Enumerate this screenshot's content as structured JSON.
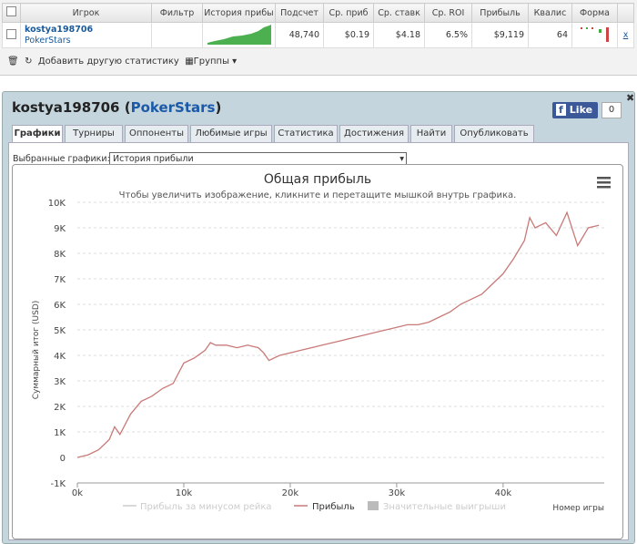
{
  "table": {
    "headers": [
      "Игрок",
      "Фильтр",
      "История прибы",
      "Подсчет",
      "Ср. приб",
      "Ср. ставк",
      "Ср. ROI",
      "Прибыль",
      "Квалис",
      "Форма"
    ],
    "row": {
      "player": "kostya198706",
      "site": "PokerStars",
      "count": "48,740",
      "avg_profit": "$0.19",
      "avg_stake": "$4.18",
      "roi": "6.5%",
      "profit": "$9,119",
      "quality": "64",
      "remove": "x"
    }
  },
  "toolbar": {
    "add": "Добавить другую статистику",
    "groups": "Группы"
  },
  "panel": {
    "player": "kostya198706",
    "paren_open": "(",
    "site": "PokerStars",
    "paren_close": ")",
    "like": "Like",
    "like_count": "0",
    "tabs": [
      "Графики",
      "Турниры",
      "Оппоненты",
      "Любимые игры",
      "Статистика",
      "Достижения",
      "Найти",
      "Опубликовать"
    ],
    "select_label": "Выбранные графики:",
    "selected": "История прибыли"
  },
  "chart_data": {
    "type": "line",
    "title": "Общая прибыль",
    "subtitle": "Чтобы увеличить изображение, кликните и перетащите мышкой внутрь графика.",
    "x_label": "Номер игры",
    "y_label": "Суммарный итог (USD)",
    "x": [
      0,
      1000,
      2000,
      3000,
      3500,
      4000,
      5000,
      6000,
      7000,
      8000,
      9000,
      9500,
      10000,
      11000,
      12000,
      12500,
      13000,
      14000,
      15000,
      16000,
      17000,
      17500,
      18000,
      19000,
      20000,
      21000,
      22000,
      23000,
      24000,
      25000,
      26000,
      27000,
      28000,
      29000,
      30000,
      31000,
      32000,
      33000,
      34000,
      35000,
      36000,
      37000,
      38000,
      39000,
      40000,
      41000,
      42000,
      42500,
      43000,
      44000,
      45000,
      46000,
      47000,
      48000,
      49000
    ],
    "series": [
      {
        "name": "Прибыль",
        "color": "#c87a78",
        "values": [
          0,
          100,
          300,
          700,
          1200,
          900,
          1700,
          2200,
          2400,
          2700,
          2900,
          3300,
          3700,
          3900,
          4200,
          4500,
          4400,
          4400,
          4300,
          4400,
          4300,
          4100,
          3800,
          4000,
          4100,
          4200,
          4300,
          4400,
          4500,
          4600,
          4700,
          4800,
          4900,
          5000,
          5100,
          5200,
          5200,
          5300,
          5500,
          5700,
          6000,
          6200,
          6400,
          6800,
          7200,
          7800,
          8500,
          9400,
          9000,
          9200,
          8700,
          9600,
          8300,
          9000,
          9100
        ]
      }
    ],
    "inactive_series": [
      {
        "name": "Прибыль за минусом рейка",
        "color": "#cccccc"
      },
      {
        "name": "Значительные выигрыши",
        "color": "#bbbbbb"
      }
    ],
    "xlim": [
      0,
      49500
    ],
    "xticks": [
      {
        "value": 0,
        "label": "0k"
      },
      {
        "value": 10000,
        "label": "10k"
      },
      {
        "value": 20000,
        "label": "20k"
      },
      {
        "value": 30000,
        "label": "30k"
      },
      {
        "value": 40000,
        "label": "40k"
      }
    ],
    "ylim": [
      -1000,
      10000
    ],
    "yticks": [
      {
        "value": -1000,
        "label": "-1K"
      },
      0,
      {
        "value": 1000,
        "label": "1K"
      },
      {
        "value": 2000,
        "label": "2K"
      },
      {
        "value": 3000,
        "label": "3K"
      },
      {
        "value": 4000,
        "label": "4K"
      },
      {
        "value": 5000,
        "label": "5K"
      },
      {
        "value": 6000,
        "label": "6K"
      },
      {
        "value": 7000,
        "label": "7K"
      },
      {
        "value": 8000,
        "label": "8K"
      },
      {
        "value": 9000,
        "label": "9K"
      },
      {
        "value": 10000,
        "label": "10K"
      }
    ],
    "grid": true
  }
}
